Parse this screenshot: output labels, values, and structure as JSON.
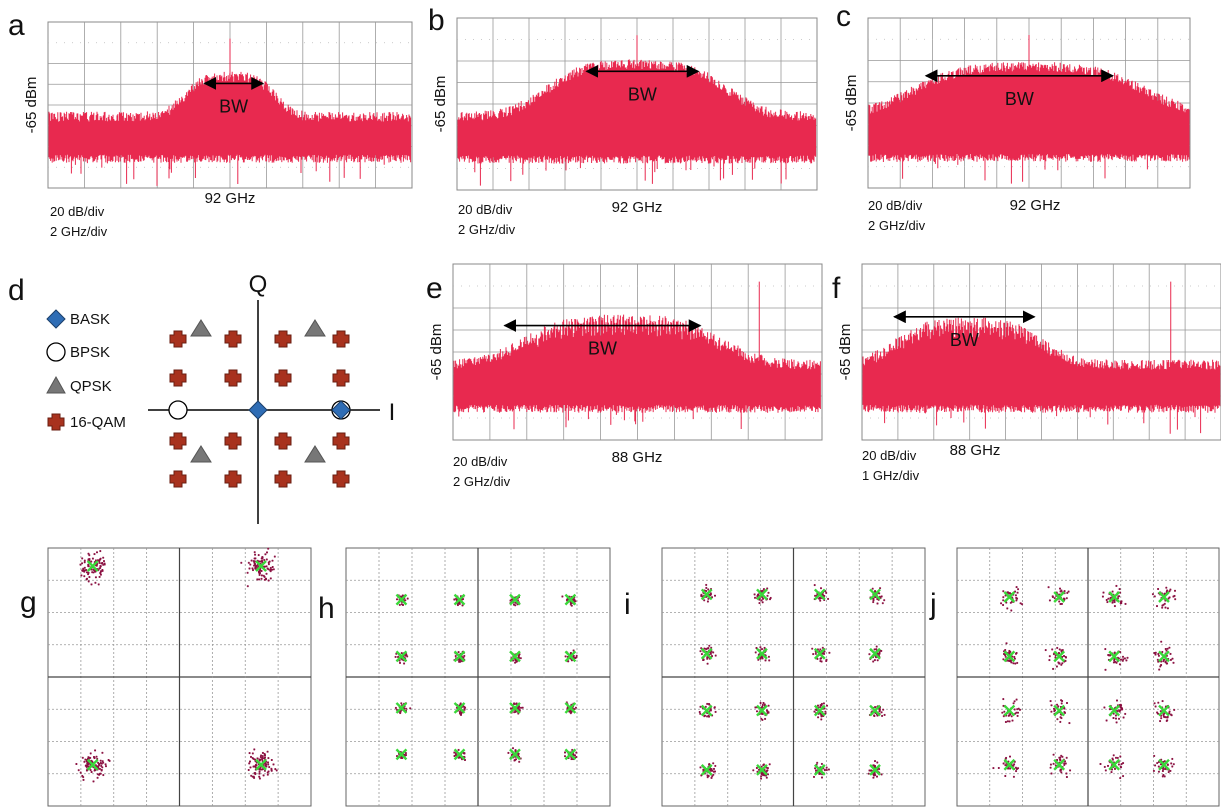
{
  "spectra": [
    {
      "label": "a",
      "ylabel": "-65 dBm",
      "bw": "BW",
      "center": "92 GHz",
      "scale": [
        "20 dB/div",
        "2 GHz/div"
      ]
    },
    {
      "label": "b",
      "ylabel": "-65 dBm",
      "bw": "BW",
      "center": "92 GHz",
      "scale": [
        "20 dB/div",
        "2 GHz/div"
      ]
    },
    {
      "label": "c",
      "ylabel": "-65 dBm",
      "bw": "BW",
      "center": "92 GHz",
      "scale": [
        "20 dB/div",
        "2 GHz/div"
      ]
    },
    {
      "label": "e",
      "ylabel": "-65 dBm",
      "bw": "BW",
      "center": "88 GHz",
      "scale": [
        "20 dB/div",
        "2 GHz/div"
      ]
    },
    {
      "label": "f",
      "ylabel": "-65 dBm",
      "bw": "BW",
      "center": "88 GHz",
      "scale": [
        "20 dB/div",
        "1 GHz/div"
      ]
    }
  ],
  "diagram": {
    "label": "d",
    "q_axis": "Q",
    "i_axis": "I",
    "legend": [
      "BASK",
      "BPSK",
      "QPSK",
      "16-QAM"
    ]
  },
  "constellations": [
    {
      "label": "g"
    },
    {
      "label": "h"
    },
    {
      "label": "i"
    },
    {
      "label": "j"
    }
  ]
}
